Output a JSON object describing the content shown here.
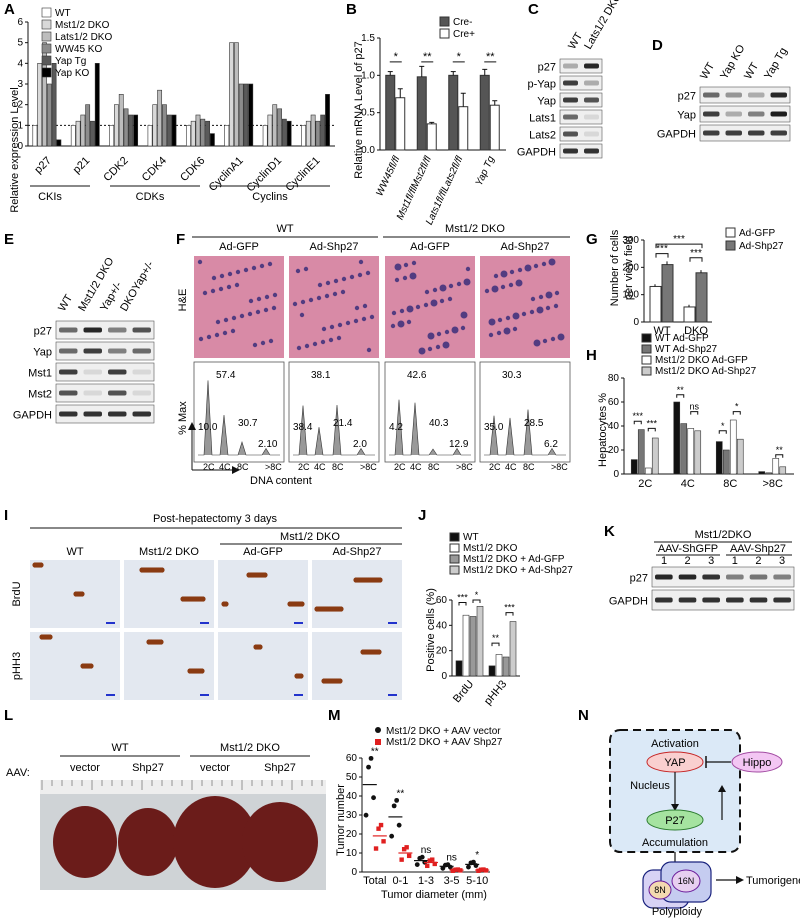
{
  "panels": {
    "A": "A",
    "B": "B",
    "C": "C",
    "D": "D",
    "E": "E",
    "F": "F",
    "G": "G",
    "H": "H",
    "I": "I",
    "J": "J",
    "K": "K",
    "L": "L",
    "M": "M",
    "N": "N"
  },
  "panelA": {
    "ylabel": "Relative expression Level",
    "legend": [
      "WT",
      "Mst1/2 DKO",
      "Lats1/2 DKO",
      "WW45 KO",
      "Yap Tg",
      "Yap KO"
    ],
    "colors": [
      "#ffffff",
      "#d9d9d9",
      "#bdbdbd",
      "#8c8c8c",
      "#5a5a5a",
      "#000000"
    ],
    "groups": [
      "CKIs",
      "CDKs",
      "Cyclins"
    ],
    "yticks": [
      "0",
      "1",
      "2",
      "3",
      "4",
      "5",
      "6"
    ]
  },
  "chart_data": [
    {
      "type": "bar",
      "panel": "A",
      "ylabel": "Relative expression Level",
      "ylim": [
        0,
        6
      ],
      "reference_line": 1,
      "categories": [
        "p27",
        "p21",
        "CDK2",
        "CDK4",
        "CDK6",
        "CyclinA1",
        "CyclinD1",
        "CyclinE1"
      ],
      "series": [
        {
          "name": "WT",
          "values": [
            1,
            1,
            1,
            1,
            1,
            1,
            1,
            1
          ]
        },
        {
          "name": "Mst1/2 DKO",
          "values": [
            4,
            1.2,
            2,
            2,
            1.2,
            5,
            1.5,
            1.2
          ]
        },
        {
          "name": "Lats1/2 DKO",
          "values": [
            5,
            1.5,
            2.5,
            2.7,
            1.5,
            5,
            2,
            1.5
          ]
        },
        {
          "name": "WW45 KO",
          "values": [
            3,
            2,
            1.8,
            2,
            1.3,
            3,
            1.8,
            1.2
          ]
        },
        {
          "name": "Yap Tg",
          "values": [
            4,
            1.2,
            1.5,
            1.5,
            1.2,
            3,
            1.3,
            1.5
          ]
        },
        {
          "name": "Yap KO",
          "values": [
            0.3,
            4,
            1.5,
            1.5,
            0.6,
            3,
            1.2,
            2.5
          ]
        }
      ]
    },
    {
      "type": "bar",
      "panel": "B",
      "ylabel": "Relative mRNA Level of p27",
      "ylim": [
        0,
        1.5
      ],
      "categories": [
        "WW45fl/fl",
        "Mst1fl/flMst2fl/fl",
        "Lats1fl/flLats2fl/fl",
        "Yap Tg"
      ],
      "series": [
        {
          "name": "Cre-",
          "values": [
            1.0,
            0.98,
            1.0,
            1.0
          ],
          "errors": [
            0.05,
            0.14,
            0.05,
            0.08
          ]
        },
        {
          "name": "Cre+",
          "values": [
            0.7,
            0.35,
            0.58,
            0.6
          ],
          "errors": [
            0.12,
            0.02,
            0.18,
            0.06
          ]
        }
      ],
      "significance": [
        "*",
        "**",
        "*",
        "**"
      ]
    },
    {
      "type": "bar",
      "panel": "G",
      "ylabel": "Number of cells per view field",
      "ylim": [
        0,
        300
      ],
      "categories": [
        "WT",
        "DKO"
      ],
      "series": [
        {
          "name": "Ad-GFP",
          "values": [
            130,
            55
          ],
          "errors": [
            8,
            8
          ]
        },
        {
          "name": "Ad-Shp27",
          "values": [
            210,
            180
          ],
          "errors": [
            12,
            10
          ]
        }
      ],
      "significance": [
        "***",
        "***",
        "***"
      ]
    },
    {
      "type": "bar",
      "panel": "H",
      "ylabel": "Hepatocytes %",
      "ylim": [
        0,
        80
      ],
      "categories": [
        "2C",
        "4C",
        "8C",
        ">8C"
      ],
      "series": [
        {
          "name": "WT Ad-GFP",
          "values": [
            12,
            60,
            27,
            2
          ]
        },
        {
          "name": "WT Ad-Shp27",
          "values": [
            37,
            42,
            20,
            1
          ]
        },
        {
          "name": "Mst1/2 DKO Ad-GFP",
          "values": [
            5,
            38,
            45,
            13
          ]
        },
        {
          "name": "Mst1/2 DKO Ad-Shp27",
          "values": [
            30,
            36,
            29,
            6
          ]
        }
      ],
      "significance": [
        "***",
        "***",
        "**",
        "ns",
        "*",
        "*",
        "**"
      ]
    },
    {
      "type": "bar",
      "panel": "J",
      "ylabel": "Positive cells (%)",
      "ylim": [
        0,
        60
      ],
      "categories": [
        "BrdU",
        "pHH3"
      ],
      "series": [
        {
          "name": "WT",
          "values": [
            12,
            8
          ]
        },
        {
          "name": "Mst1/2 DKO",
          "values": [
            48,
            17
          ]
        },
        {
          "name": "Mst1/2 DKO + Ad-GFP",
          "values": [
            47,
            15
          ]
        },
        {
          "name": "Mst1/2 DKO + Ad-Shp27",
          "values": [
            55,
            43
          ]
        }
      ],
      "significance": [
        "***",
        "*",
        "**",
        "***"
      ]
    },
    {
      "type": "scatter",
      "panel": "M",
      "ylabel": "Tumor number",
      "xlabel": "Tumor diameter (mm)",
      "ylim": [
        0,
        60
      ],
      "categories": [
        "Total",
        "0-1",
        "1-3",
        "3-5",
        "5-10"
      ],
      "series": [
        {
          "name": "Mst1/2 DKO + AAV vector",
          "means": [
            46,
            29,
            6,
            3,
            4
          ]
        },
        {
          "name": "Mst1/2 DKO + AAV Shp27",
          "means": [
            19,
            10,
            5,
            1,
            1
          ]
        }
      ],
      "significance": [
        "**",
        "**",
        "ns",
        "ns",
        "*"
      ]
    }
  ],
  "panelB": {
    "ylabel": "Relative mRNA Level of p27",
    "legend": [
      "Cre-",
      "Cre+"
    ],
    "yticks": [
      "0.0",
      "0.5",
      "1.0",
      "1.5"
    ],
    "xlabels": [
      "WW45fl/fl",
      "Mst1fl/flMst2fl/fl",
      "Lats1fl/flLats2fl/fl",
      "Yap Tg"
    ]
  },
  "panelC": {
    "cols": [
      "WT",
      "Lats1/2 DKO"
    ],
    "rows": [
      "p27",
      "p-Yap",
      "Yap",
      "Lats1",
      "Lats2",
      "GAPDH"
    ]
  },
  "panelD": {
    "cols": [
      "WT",
      "Yap KO",
      "WT",
      "Yap Tg"
    ],
    "rows": [
      "p27",
      "Yap",
      "GAPDH"
    ]
  },
  "panelE": {
    "cols": [
      "WT",
      "Mst1/2 DKO",
      "Yap+/-",
      "DKOYap+/-"
    ],
    "rows": [
      "p27",
      "Yap",
      "Mst1",
      "Mst2",
      "GAPDH"
    ]
  },
  "panelF": {
    "groups": [
      "WT",
      "Mst1/2 DKO"
    ],
    "cols": [
      "Ad-GFP",
      "Ad-Shp27",
      "Ad-GFP",
      "Ad-Shp27"
    ],
    "row1": "H&E",
    "ylabel": "% Max",
    "xlabel": "DNA content",
    "xticks": [
      "2C",
      "4C",
      "8C",
      ">8C"
    ],
    "histos": [
      [
        "57.4",
        "10.0",
        "30.7",
        "2.10"
      ],
      [
        "38.1",
        "38.4",
        "21.4",
        "2.0"
      ],
      [
        "42.6",
        "4.2",
        "40.3",
        "12.9"
      ],
      [
        "30.3",
        "35.0",
        "28.5",
        "6.2"
      ]
    ]
  },
  "panelG": {
    "ylabel": "Number of cells per view field",
    "legend": [
      "Ad-GFP",
      "Ad-Shp27"
    ],
    "yticks": [
      "0",
      "100",
      "200",
      "300"
    ],
    "xlabels": [
      "WT",
      "DKO"
    ]
  },
  "panelH": {
    "ylabel": "Hepatocytes %",
    "legend": [
      "WT Ad-GFP",
      "WT Ad-Shp27",
      "Mst1/2 DKO Ad-GFP",
      "Mst1/2 DKO Ad-Shp27"
    ],
    "yticks": [
      "0",
      "20",
      "40",
      "60",
      "80"
    ],
    "xlabels": [
      "2C",
      "4C",
      "8C",
      ">8C"
    ]
  },
  "panelI": {
    "title": "Post-hepatectomy 3 days",
    "group": "Mst1/2 DKO",
    "cols": [
      "WT",
      "Mst1/2 DKO",
      "Ad-GFP",
      "Ad-Shp27"
    ],
    "rows": [
      "BrdU",
      "pHH3"
    ]
  },
  "panelJ": {
    "ylabel": "Positive cells (%)",
    "legend": [
      "WT",
      "Mst1/2 DKO",
      "Mst1/2 DKO + Ad-GFP",
      "Mst1/2 DKO + Ad-Shp27"
    ],
    "yticks": [
      "0",
      "20",
      "40",
      "60"
    ],
    "xlabels": [
      "BrdU",
      "pHH3"
    ]
  },
  "panelK": {
    "group": "Mst1/2DKO",
    "sub": [
      "AAV-ShGFP",
      "AAV-Shp27"
    ],
    "lanes": [
      "1",
      "2",
      "3",
      "1",
      "2",
      "3"
    ],
    "rows": [
      "p27",
      "GAPDH"
    ]
  },
  "panelL": {
    "row": "AAV:",
    "groups": [
      "WT",
      "Mst1/2 DKO"
    ],
    "cols": [
      "vector",
      "Shp27",
      "vector",
      "Shp27"
    ]
  },
  "panelM": {
    "ylabel": "Tumor number",
    "xlabel": "Tumor diameter (mm)",
    "legend": [
      "Mst1/2 DKO + AAV vector",
      "Mst1/2 DKO + AAV Shp27"
    ],
    "yticks": [
      "0",
      "10",
      "20",
      "30",
      "40",
      "50",
      "60"
    ],
    "xlabels": [
      "Total",
      "0-1",
      "1-3",
      "3-5",
      "5-10"
    ]
  },
  "panelN": {
    "yap": "YAP",
    "hippo": "Hippo",
    "p27": "P27",
    "activation": "Activation",
    "nucleus": "Nucleus",
    "accumulation": "Accumulation",
    "n8": "8N",
    "n16": "16N",
    "tumorigenesis": "Tumorigenesis",
    "polyploidy": "Polyploidy"
  }
}
